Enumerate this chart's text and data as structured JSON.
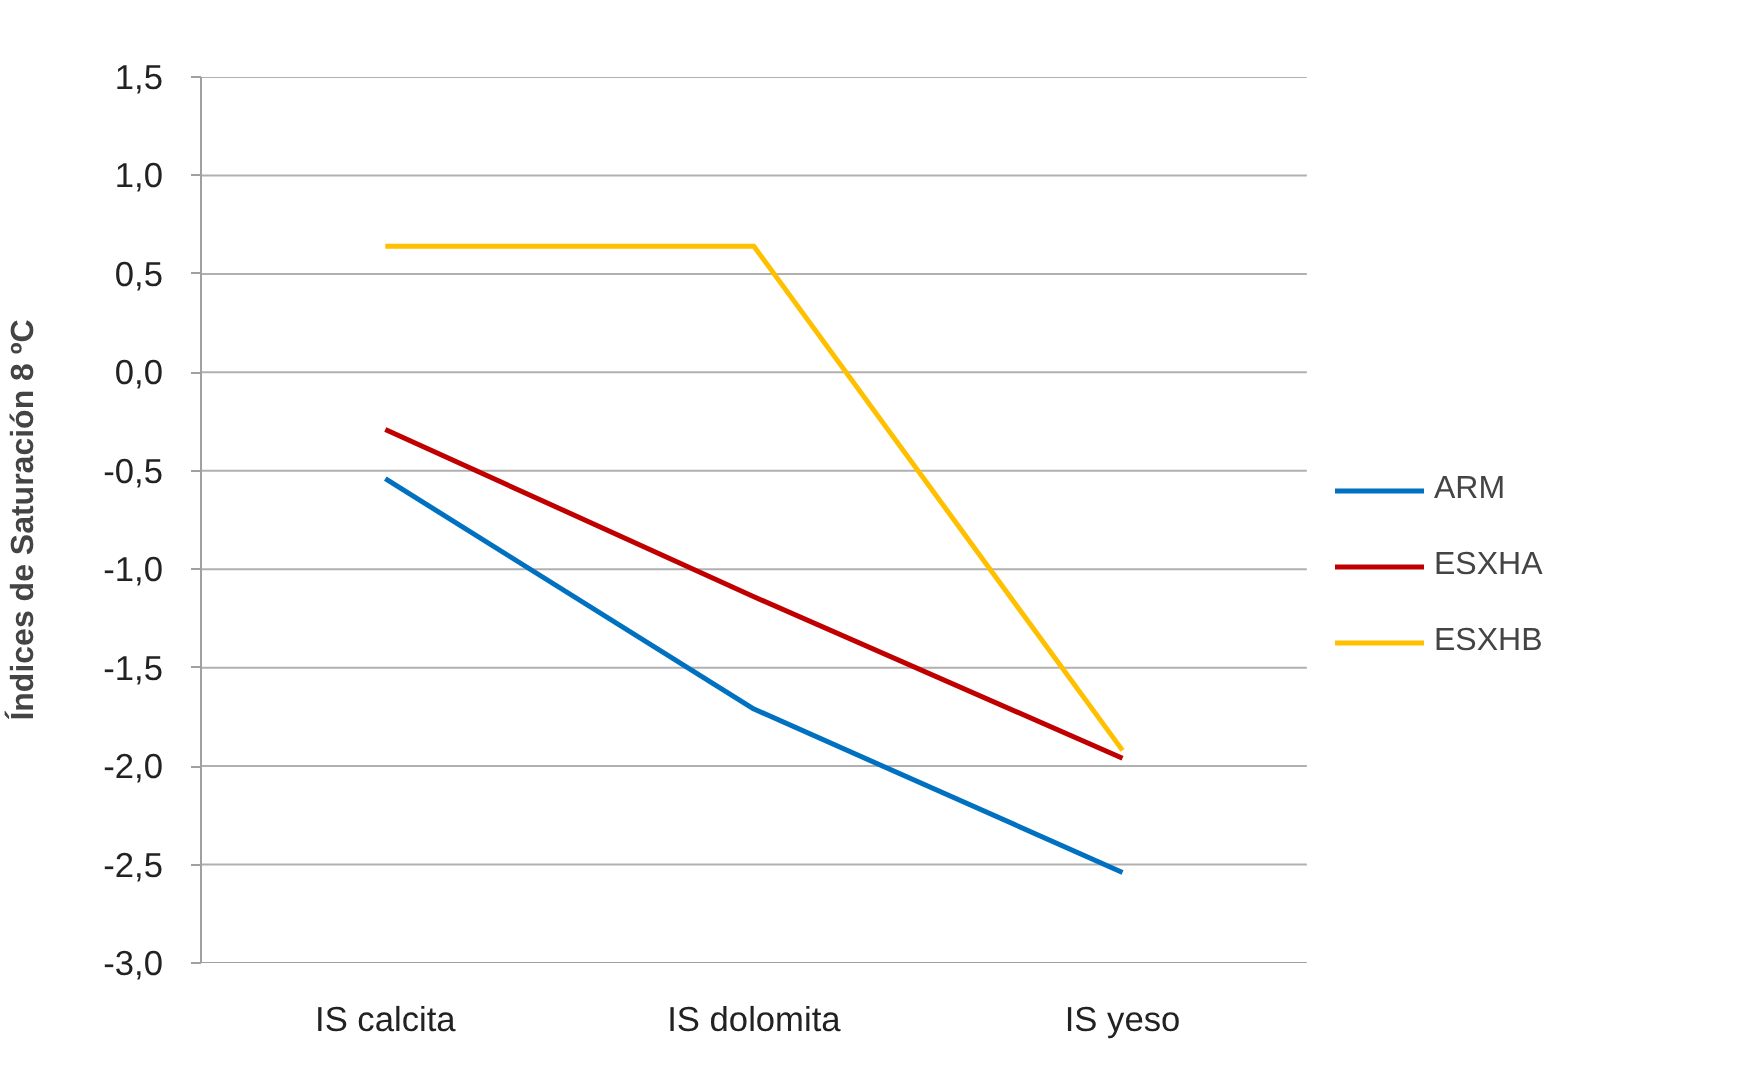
{
  "chart_data": {
    "type": "line",
    "ylabel": "Índices de Saturación 8 ºC",
    "categories": [
      "IS calcita",
      "IS dolomita",
      "IS yeso"
    ],
    "series": [
      {
        "name": "ARM",
        "color": "#0070c0",
        "values": [
          -0.54,
          -1.71,
          -2.54
        ]
      },
      {
        "name": "ESXHA",
        "color": "#c00000",
        "values": [
          -0.29,
          -1.14,
          -1.96
        ]
      },
      {
        "name": "ESXHB",
        "color": "#ffc000",
        "values": [
          0.64,
          0.64,
          -1.92
        ]
      }
    ],
    "ylim": [
      -3.0,
      1.5
    ],
    "yticks": [
      {
        "value": -3.0,
        "label": "-3,0"
      },
      {
        "value": -2.5,
        "label": "-2,5"
      },
      {
        "value": -2.0,
        "label": "-2,0"
      },
      {
        "value": -1.5,
        "label": "-1,5"
      },
      {
        "value": -1.0,
        "label": "-1,0"
      },
      {
        "value": -0.5,
        "label": "-0,5"
      },
      {
        "value": 0.0,
        "label": "0,0"
      },
      {
        "value": 0.5,
        "label": "0,5"
      },
      {
        "value": 1.0,
        "label": "1,0"
      },
      {
        "value": 1.5,
        "label": "1,5"
      }
    ],
    "grid": "y",
    "legend": "right",
    "marker": "none",
    "line_style": "solid"
  }
}
